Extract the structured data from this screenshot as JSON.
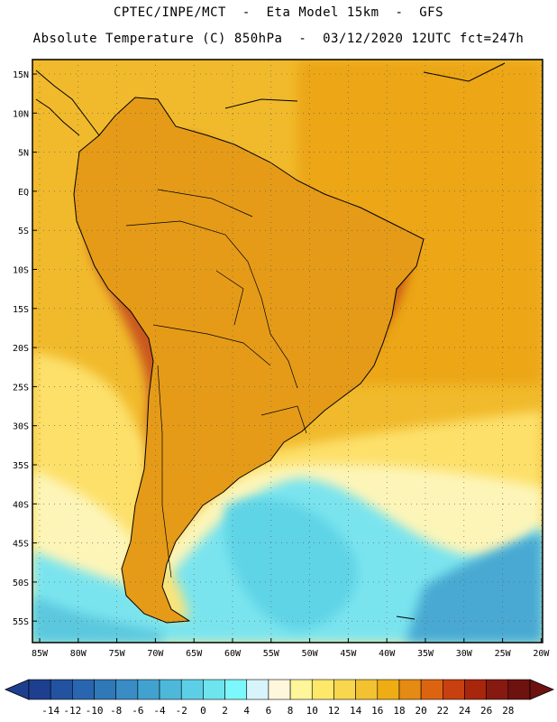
{
  "title_line1": "CPTEC/INPE/MCT  -  Eta Model 15km  -  GFS",
  "title_line2": "Absolute Temperature (C) 850hPa  -  03/12/2020 12UTC fct=247h",
  "lat_labels": [
    "15N",
    "10N",
    "5N",
    "EQ",
    "5S",
    "10S",
    "15S",
    "20S",
    "25S",
    "30S",
    "35S",
    "40S",
    "45S",
    "50S",
    "55S"
  ],
  "lon_labels": [
    "85W",
    "80W",
    "75W",
    "70W",
    "65W",
    "60W",
    "55W",
    "50W",
    "45W",
    "40W",
    "35W",
    "30W",
    "25W",
    "20W"
  ],
  "colorbar": {
    "labels": [
      "-14",
      "-12",
      "-10",
      "-8",
      "-6",
      "-4",
      "-2",
      "0",
      "2",
      "4",
      "6",
      "8",
      "10",
      "12",
      "14",
      "16",
      "18",
      "20",
      "22",
      "24",
      "26",
      "28"
    ],
    "colors": [
      "#1e3f8f",
      "#2352a0",
      "#2a66b0",
      "#3079b8",
      "#3a8cc4",
      "#42a2cf",
      "#4eb8da",
      "#5ccfe6",
      "#6ee4ef",
      "#7cf7fb",
      "#d8f4fb",
      "#fef7dc",
      "#fff59a",
      "#fde86a",
      "#f8d64e",
      "#f2c230",
      "#eead14",
      "#e58a12",
      "#dc6410",
      "#c84010",
      "#a8260c",
      "#861a10",
      "#6e1210"
    ]
  },
  "colors": {
    "ocean_warm": "#f1ba2c",
    "ocean_hot": "#eda516",
    "land_warm": "#e59b16",
    "land_hot": "#d16316",
    "frame": "#000000"
  }
}
